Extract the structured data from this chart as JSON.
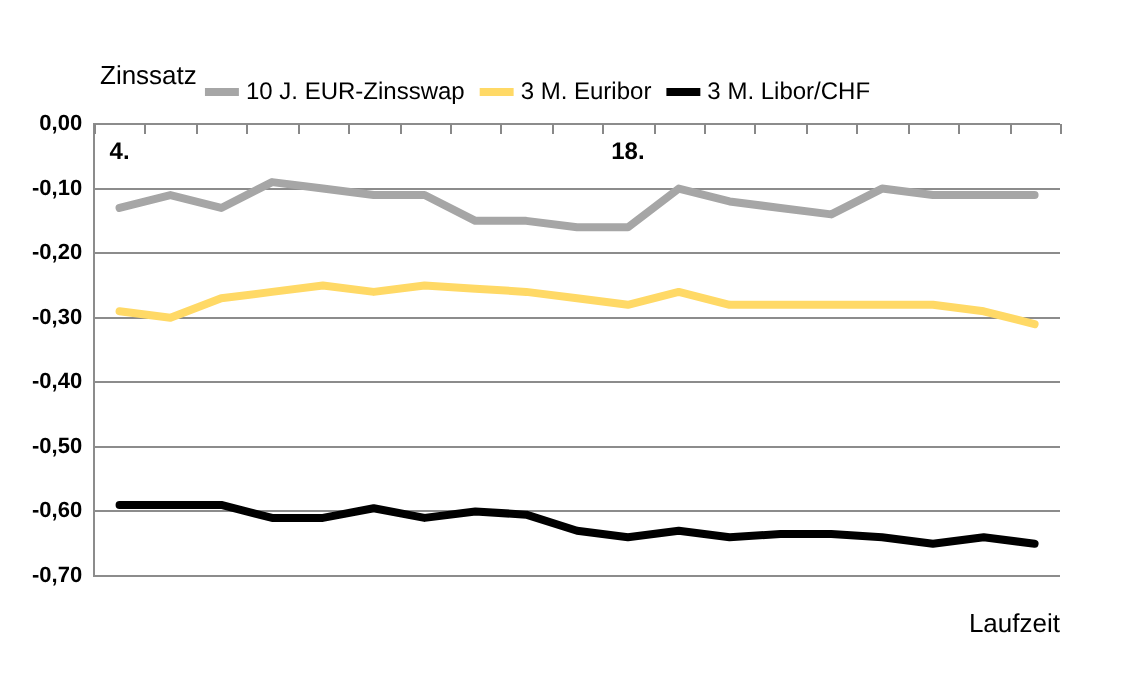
{
  "chart_data": {
    "type": "line",
    "ylabel": "Zinssatz",
    "xlabel": "Laufzeit",
    "categories": [
      "4.",
      null,
      null,
      null,
      null,
      null,
      null,
      null,
      null,
      null,
      "18.",
      null,
      null,
      null,
      null,
      null,
      null,
      null,
      null
    ],
    "series": [
      {
        "name": "10 J. EUR-Zinsswap",
        "color": "#a6a6a6",
        "values": [
          -0.13,
          -0.11,
          -0.13,
          -0.09,
          -0.1,
          -0.11,
          -0.11,
          -0.15,
          -0.15,
          -0.16,
          -0.16,
          -0.1,
          -0.12,
          -0.13,
          -0.14,
          -0.1,
          -0.11,
          -0.11,
          -0.11
        ]
      },
      {
        "name": "3 M. Euribor",
        "color": "#ffd966",
        "values": [
          -0.29,
          -0.3,
          -0.27,
          -0.26,
          -0.25,
          -0.26,
          -0.25,
          -0.255,
          -0.26,
          -0.27,
          -0.28,
          -0.26,
          -0.28,
          -0.28,
          -0.28,
          -0.28,
          -0.28,
          -0.29,
          -0.31
        ]
      },
      {
        "name": "3 M. Libor/CHF",
        "color": "#000000",
        "values": [
          -0.59,
          -0.59,
          -0.59,
          -0.61,
          -0.61,
          -0.595,
          -0.61,
          -0.6,
          -0.605,
          -0.63,
          -0.64,
          -0.63,
          -0.64,
          -0.635,
          -0.635,
          -0.64,
          -0.65,
          -0.64,
          -0.65
        ]
      }
    ],
    "ylim": [
      -0.7,
      0
    ],
    "yticks": [
      {
        "value": 0,
        "label": "0,00"
      },
      {
        "value": -0.1,
        "label": "-0,10"
      },
      {
        "value": -0.2,
        "label": "-0,20"
      },
      {
        "value": -0.3,
        "label": "-0,30"
      },
      {
        "value": -0.4,
        "label": "-0,40"
      },
      {
        "value": -0.5,
        "label": "-0,50"
      },
      {
        "value": -0.6,
        "label": "-0,60"
      },
      {
        "value": -0.7,
        "label": "-0,70"
      }
    ],
    "grid": "y",
    "legend": "top",
    "marker": "none",
    "line_style": "solid"
  }
}
